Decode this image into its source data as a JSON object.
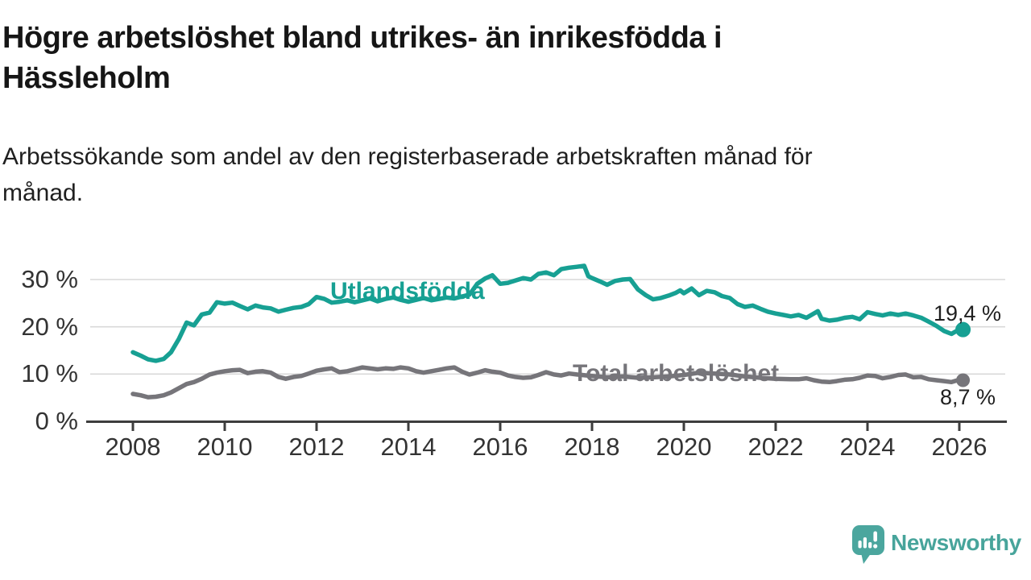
{
  "header": {
    "title_line1": "Högre arbetslöshet bland utrikes- än inrikesfödda i",
    "title_line2": "Hässleholm",
    "subtitle_line1": "Arbetssökande som andel av den registerbaserade arbetskraften månad för",
    "subtitle_line2": "månad."
  },
  "branding": {
    "wordmark": "Newsworthy",
    "color": "#47a49b"
  },
  "colors": {
    "utlandsfodda": "#17a093",
    "total": "#76757a",
    "grid": "#d9d9d9",
    "axis": "#3d3d3d",
    "tick_text": "#333333"
  },
  "chart_data": {
    "type": "line",
    "title": "Högre arbetslöshet bland utrikes- än inrikesfödda i Hässleholm",
    "subtitle": "Arbetssökande som andel av den registerbaserade arbetskraften månad för månad.",
    "grid": "horizontal",
    "legend_position": "inline-labels",
    "xlabel": "",
    "ylabel": "",
    "xlim": [
      2007.0,
      2027.2
    ],
    "ylim": [
      0,
      33
    ],
    "x_ticks": [
      "2008",
      "2010",
      "2012",
      "2014",
      "2016",
      "2018",
      "2020",
      "2022",
      "2024",
      "2026"
    ],
    "x_tick_years": [
      2008,
      2010,
      2012,
      2014,
      2016,
      2018,
      2020,
      2022,
      2024,
      2026
    ],
    "y_ticks": [
      {
        "label": "30 %",
        "value": 30
      },
      {
        "label": "20 %",
        "value": 20
      },
      {
        "label": "10 %",
        "value": 10
      },
      {
        "label": "0 %",
        "value": 0
      }
    ],
    "series": [
      {
        "name": "Utlandsfödda",
        "color": "#17a093",
        "end_label": "19,4 %",
        "end_value": 19.4,
        "points": [
          [
            2008.0,
            14.6
          ],
          [
            2008.17,
            13.9
          ],
          [
            2008.33,
            13.1
          ],
          [
            2008.5,
            12.8
          ],
          [
            2008.67,
            13.2
          ],
          [
            2008.83,
            14.6
          ],
          [
            2009.0,
            17.4
          ],
          [
            2009.17,
            20.9
          ],
          [
            2009.33,
            20.3
          ],
          [
            2009.5,
            22.6
          ],
          [
            2009.67,
            23.0
          ],
          [
            2009.83,
            25.2
          ],
          [
            2010.0,
            24.9
          ],
          [
            2010.17,
            25.1
          ],
          [
            2010.33,
            24.4
          ],
          [
            2010.5,
            23.7
          ],
          [
            2010.67,
            24.5
          ],
          [
            2010.83,
            24.1
          ],
          [
            2011.0,
            23.9
          ],
          [
            2011.17,
            23.2
          ],
          [
            2011.33,
            23.6
          ],
          [
            2011.5,
            24.0
          ],
          [
            2011.67,
            24.2
          ],
          [
            2011.83,
            24.8
          ],
          [
            2012.0,
            26.3
          ],
          [
            2012.17,
            25.9
          ],
          [
            2012.33,
            25.1
          ],
          [
            2012.5,
            25.3
          ],
          [
            2012.67,
            25.6
          ],
          [
            2012.83,
            25.2
          ],
          [
            2013.0,
            25.6
          ],
          [
            2013.17,
            26.0
          ],
          [
            2013.33,
            25.4
          ],
          [
            2013.5,
            25.9
          ],
          [
            2013.67,
            26.2
          ],
          [
            2013.83,
            25.7
          ],
          [
            2014.0,
            25.3
          ],
          [
            2014.17,
            25.7
          ],
          [
            2014.33,
            26.1
          ],
          [
            2014.5,
            25.6
          ],
          [
            2014.67,
            25.9
          ],
          [
            2014.83,
            26.2
          ],
          [
            2015.0,
            26.0
          ],
          [
            2015.17,
            26.4
          ],
          [
            2015.33,
            26.8
          ],
          [
            2015.5,
            29.1
          ],
          [
            2015.67,
            30.2
          ],
          [
            2015.83,
            30.9
          ],
          [
            2016.0,
            29.1
          ],
          [
            2016.17,
            29.3
          ],
          [
            2016.33,
            29.8
          ],
          [
            2016.5,
            30.3
          ],
          [
            2016.67,
            30.0
          ],
          [
            2016.83,
            31.2
          ],
          [
            2017.0,
            31.5
          ],
          [
            2017.17,
            30.9
          ],
          [
            2017.33,
            32.2
          ],
          [
            2017.5,
            32.5
          ],
          [
            2017.67,
            32.7
          ],
          [
            2017.83,
            32.9
          ],
          [
            2017.92,
            30.7
          ],
          [
            2018.0,
            30.3
          ],
          [
            2018.17,
            29.6
          ],
          [
            2018.33,
            28.9
          ],
          [
            2018.5,
            29.7
          ],
          [
            2018.67,
            30.0
          ],
          [
            2018.83,
            30.1
          ],
          [
            2019.0,
            27.9
          ],
          [
            2019.17,
            26.7
          ],
          [
            2019.33,
            25.8
          ],
          [
            2019.5,
            26.1
          ],
          [
            2019.67,
            26.6
          ],
          [
            2019.83,
            27.2
          ],
          [
            2019.92,
            27.7
          ],
          [
            2020.0,
            27.1
          ],
          [
            2020.17,
            28.1
          ],
          [
            2020.33,
            26.7
          ],
          [
            2020.5,
            27.6
          ],
          [
            2020.67,
            27.3
          ],
          [
            2020.83,
            26.5
          ],
          [
            2021.0,
            26.1
          ],
          [
            2021.17,
            24.8
          ],
          [
            2021.33,
            24.2
          ],
          [
            2021.5,
            24.5
          ],
          [
            2021.67,
            23.8
          ],
          [
            2021.83,
            23.2
          ],
          [
            2022.0,
            22.8
          ],
          [
            2022.17,
            22.5
          ],
          [
            2022.33,
            22.2
          ],
          [
            2022.5,
            22.5
          ],
          [
            2022.67,
            21.9
          ],
          [
            2022.83,
            22.8
          ],
          [
            2022.92,
            23.3
          ],
          [
            2023.0,
            21.7
          ],
          [
            2023.17,
            21.3
          ],
          [
            2023.33,
            21.5
          ],
          [
            2023.5,
            21.9
          ],
          [
            2023.67,
            22.1
          ],
          [
            2023.83,
            21.6
          ],
          [
            2023.92,
            22.4
          ],
          [
            2024.0,
            23.1
          ],
          [
            2024.17,
            22.7
          ],
          [
            2024.33,
            22.4
          ],
          [
            2024.5,
            22.8
          ],
          [
            2024.67,
            22.5
          ],
          [
            2024.83,
            22.8
          ],
          [
            2025.0,
            22.4
          ],
          [
            2025.17,
            21.9
          ],
          [
            2025.33,
            21.1
          ],
          [
            2025.5,
            20.2
          ],
          [
            2025.67,
            19.1
          ],
          [
            2025.83,
            18.5
          ],
          [
            2025.92,
            19.0
          ],
          [
            2026.08,
            19.4
          ]
        ]
      },
      {
        "name": "Total arbetslöshet",
        "color": "#76757a",
        "end_label": "8,7 %",
        "end_value": 8.7,
        "points": [
          [
            2008.0,
            5.8
          ],
          [
            2008.17,
            5.5
          ],
          [
            2008.33,
            5.1
          ],
          [
            2008.5,
            5.2
          ],
          [
            2008.67,
            5.5
          ],
          [
            2008.83,
            6.1
          ],
          [
            2009.0,
            7.0
          ],
          [
            2009.17,
            7.9
          ],
          [
            2009.33,
            8.3
          ],
          [
            2009.5,
            9.0
          ],
          [
            2009.67,
            9.9
          ],
          [
            2009.83,
            10.3
          ],
          [
            2010.0,
            10.6
          ],
          [
            2010.17,
            10.8
          ],
          [
            2010.33,
            10.9
          ],
          [
            2010.5,
            10.2
          ],
          [
            2010.67,
            10.5
          ],
          [
            2010.83,
            10.6
          ],
          [
            2011.0,
            10.3
          ],
          [
            2011.17,
            9.4
          ],
          [
            2011.33,
            9.0
          ],
          [
            2011.5,
            9.4
          ],
          [
            2011.67,
            9.6
          ],
          [
            2011.83,
            10.1
          ],
          [
            2012.0,
            10.7
          ],
          [
            2012.17,
            11.0
          ],
          [
            2012.33,
            11.2
          ],
          [
            2012.5,
            10.4
          ],
          [
            2012.67,
            10.6
          ],
          [
            2012.83,
            11.0
          ],
          [
            2013.0,
            11.4
          ],
          [
            2013.17,
            11.2
          ],
          [
            2013.33,
            11.0
          ],
          [
            2013.5,
            11.2
          ],
          [
            2013.67,
            11.1
          ],
          [
            2013.83,
            11.4
          ],
          [
            2014.0,
            11.2
          ],
          [
            2014.17,
            10.6
          ],
          [
            2014.33,
            10.3
          ],
          [
            2014.5,
            10.6
          ],
          [
            2014.67,
            10.9
          ],
          [
            2014.83,
            11.2
          ],
          [
            2015.0,
            11.4
          ],
          [
            2015.17,
            10.5
          ],
          [
            2015.33,
            9.9
          ],
          [
            2015.5,
            10.3
          ],
          [
            2015.67,
            10.8
          ],
          [
            2015.83,
            10.5
          ],
          [
            2016.0,
            10.3
          ],
          [
            2016.17,
            9.7
          ],
          [
            2016.33,
            9.4
          ],
          [
            2016.5,
            9.2
          ],
          [
            2016.67,
            9.3
          ],
          [
            2016.83,
            9.8
          ],
          [
            2017.0,
            10.4
          ],
          [
            2017.17,
            9.9
          ],
          [
            2017.33,
            9.7
          ],
          [
            2017.5,
            10.1
          ],
          [
            2017.67,
            9.9
          ],
          [
            2018.0,
            9.6
          ],
          [
            2018.33,
            9.3
          ],
          [
            2018.67,
            9.5
          ],
          [
            2019.0,
            9.2
          ],
          [
            2019.33,
            9.3
          ],
          [
            2019.67,
            9.5
          ],
          [
            2020.0,
            9.8
          ],
          [
            2020.33,
            10.3
          ],
          [
            2020.67,
            10.1
          ],
          [
            2021.0,
            9.9
          ],
          [
            2021.33,
            9.5
          ],
          [
            2021.67,
            9.2
          ],
          [
            2022.0,
            9.0
          ],
          [
            2022.33,
            8.9
          ],
          [
            2022.5,
            8.9
          ],
          [
            2022.67,
            9.1
          ],
          [
            2022.83,
            8.7
          ],
          [
            2023.0,
            8.4
          ],
          [
            2023.17,
            8.3
          ],
          [
            2023.33,
            8.5
          ],
          [
            2023.5,
            8.8
          ],
          [
            2023.67,
            8.9
          ],
          [
            2023.83,
            9.2
          ],
          [
            2024.0,
            9.7
          ],
          [
            2024.17,
            9.6
          ],
          [
            2024.33,
            9.1
          ],
          [
            2024.5,
            9.4
          ],
          [
            2024.67,
            9.8
          ],
          [
            2024.83,
            9.9
          ],
          [
            2025.0,
            9.3
          ],
          [
            2025.17,
            9.4
          ],
          [
            2025.33,
            8.9
          ],
          [
            2025.5,
            8.7
          ],
          [
            2025.67,
            8.5
          ],
          [
            2025.83,
            8.3
          ],
          [
            2026.0,
            8.8
          ],
          [
            2026.08,
            8.7
          ]
        ]
      }
    ]
  }
}
